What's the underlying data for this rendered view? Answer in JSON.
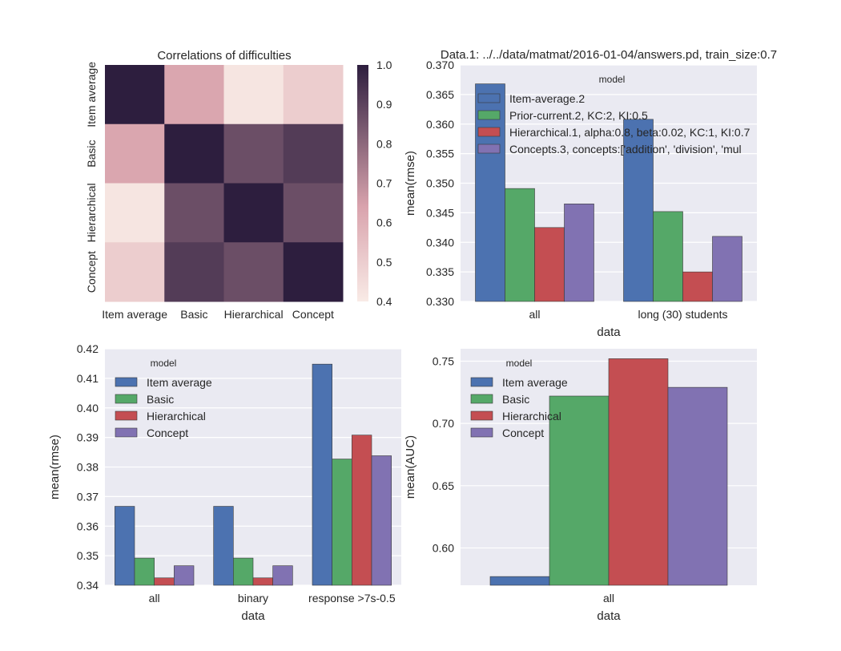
{
  "colors": {
    "series": [
      "#4c72b0",
      "#55a868",
      "#c44e52",
      "#8172b2"
    ],
    "axes_bg": "#eaeaf2",
    "grid": "#ffffff",
    "heat_low": "#f9ebe6",
    "heat_mid": "#d9a3ad",
    "heat_high": "#2d1e3e"
  },
  "chart_data": [
    {
      "type": "heatmap",
      "title": "Correlations of difficulties",
      "xlabel": "",
      "ylabel": "",
      "row_labels": [
        "Item average",
        "Basic",
        "Hierarchical",
        "Concept"
      ],
      "col_labels": [
        "Item average",
        "Basic",
        "Hierarchical",
        "Concept"
      ],
      "values": [
        [
          1.0,
          0.63,
          0.42,
          0.5
        ],
        [
          0.63,
          1.0,
          0.87,
          0.92
        ],
        [
          0.42,
          0.87,
          1.0,
          0.87
        ],
        [
          0.5,
          0.92,
          0.87,
          1.0
        ]
      ],
      "colorbar": {
        "min": 0.4,
        "max": 1.0,
        "ticks": [
          "1.0",
          "0.9",
          "0.8",
          "0.7",
          "0.6",
          "0.5",
          "0.4"
        ]
      }
    },
    {
      "type": "bar",
      "title": "Data.1: ../../data/matmat/2016-01-04/answers.pd, train_size:0.7",
      "xlabel": "data",
      "ylabel": "mean(rmse)",
      "ylim": [
        0.33,
        0.37
      ],
      "yticks": [
        "0.330",
        "0.335",
        "0.340",
        "0.345",
        "0.350",
        "0.355",
        "0.360",
        "0.365",
        "0.370"
      ],
      "categories": [
        "all",
        "long (30) students"
      ],
      "legend_title": "model",
      "legend_position": "top-right",
      "series": [
        {
          "name": "Item-average.2",
          "values": [
            0.3668,
            0.3608
          ]
        },
        {
          "name": "Prior-current.2, KC:2, KI:0.5",
          "values": [
            0.3491,
            0.3452
          ]
        },
        {
          "name": "Hierarchical.1, alpha:0.8, beta:0.02, KC:1, KI:0.7",
          "values": [
            0.3425,
            0.335
          ]
        },
        {
          "name": "Concepts.3, concepts:['addition', 'division', 'mul",
          "values": [
            0.3465,
            0.341
          ]
        }
      ]
    },
    {
      "type": "bar",
      "title": "",
      "xlabel": "data",
      "ylabel": "mean(rmse)",
      "ylim": [
        0.34,
        0.42
      ],
      "yticks": [
        "0.34",
        "0.35",
        "0.36",
        "0.37",
        "0.38",
        "0.39",
        "0.40",
        "0.41",
        "0.42"
      ],
      "categories": [
        "all",
        "binary",
        "response >7s-0.5"
      ],
      "legend_title": "model",
      "legend_position": "top-left",
      "series": [
        {
          "name": "Item average",
          "values": [
            0.3667,
            0.3667,
            0.4148
          ]
        },
        {
          "name": "Basic",
          "values": [
            0.3492,
            0.3492,
            0.3827
          ]
        },
        {
          "name": "Hierarchical",
          "values": [
            0.3425,
            0.3425,
            0.3908
          ]
        },
        {
          "name": "Concept",
          "values": [
            0.3466,
            0.3466,
            0.3838
          ]
        }
      ]
    },
    {
      "type": "bar",
      "title": "",
      "xlabel": "data",
      "ylabel": "mean(AUC)",
      "ylim": [
        0.57,
        0.76
      ],
      "yticks": [
        "0.60",
        "0.65",
        "0.70",
        "0.75"
      ],
      "categories": [
        "all"
      ],
      "legend_title": "model",
      "legend_position": "top-left",
      "series": [
        {
          "name": "Item average",
          "values": [
            0.577
          ]
        },
        {
          "name": "Basic",
          "values": [
            0.722
          ]
        },
        {
          "name": "Hierarchical",
          "values": [
            0.752
          ]
        },
        {
          "name": "Concept",
          "values": [
            0.729
          ]
        }
      ]
    }
  ]
}
